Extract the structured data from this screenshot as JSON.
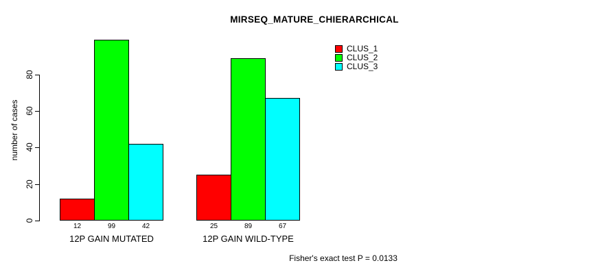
{
  "chart_data": {
    "type": "bar",
    "title": "MIRSEQ_MATURE_CHIERARCHICAL",
    "ylabel": "number of cases",
    "xlabel": "",
    "categories": [
      "12P GAIN MUTATED",
      "12P GAIN WILD-TYPE"
    ],
    "series": [
      {
        "name": "CLUS_1",
        "color": "#ff0000",
        "values": [
          12,
          25
        ]
      },
      {
        "name": "CLUS_2",
        "color": "#00ff00",
        "values": [
          99,
          89
        ]
      },
      {
        "name": "CLUS_3",
        "color": "#00ffff",
        "values": [
          42,
          67
        ]
      }
    ],
    "yticks": [
      0,
      20,
      40,
      60,
      80
    ],
    "ylim": [
      0,
      99
    ],
    "bar_value_labels_shown": true,
    "grid": "off",
    "legend_position": "top-right",
    "annotation": "Fisher's exact test P = 0.0133",
    "axis_color": "#000000",
    "background_color": "#ffffff"
  }
}
